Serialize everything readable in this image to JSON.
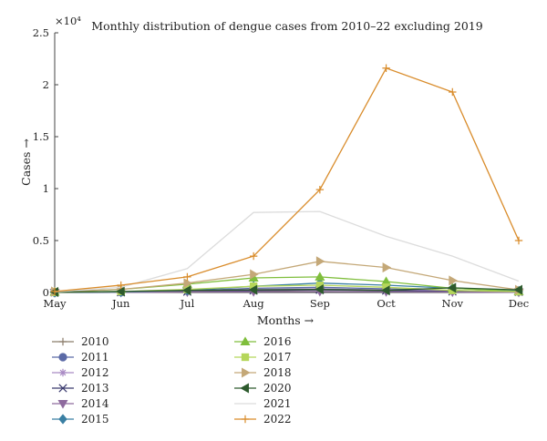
{
  "chart_data": {
    "type": "line",
    "title": "Monthly distribution of dengue cases from 2010–22 excluding 2019",
    "xlabel": "Months →",
    "ylabel": "Cases →",
    "y_exponent_label": "×10⁴",
    "categories": [
      "May",
      "Jun",
      "Jul",
      "Aug",
      "Sep",
      "Oct",
      "Nov",
      "Dec"
    ],
    "ylim": [
      0,
      25000
    ],
    "y_ticks": [
      0,
      5000,
      10000,
      15000,
      20000,
      25000
    ],
    "y_tick_labels": [
      "0",
      "0.5",
      "1",
      "1.5",
      "2",
      "2.5"
    ],
    "grid": false,
    "legend_placement": "bottom, two columns",
    "series": [
      {
        "name": "2010",
        "color": "#8b7d6b",
        "marker": "plus",
        "values": [
          0,
          20,
          60,
          120,
          250,
          200,
          100,
          40
        ]
      },
      {
        "name": "2011",
        "color": "#5b6aa6",
        "marker": "circle",
        "values": [
          0,
          30,
          150,
          400,
          500,
          350,
          180,
          80
        ]
      },
      {
        "name": "2012",
        "color": "#a98ac4",
        "marker": "asterisk",
        "values": [
          0,
          20,
          100,
          300,
          350,
          250,
          150,
          60
        ]
      },
      {
        "name": "2013",
        "color": "#3a3a6e",
        "marker": "x",
        "values": [
          0,
          20,
          80,
          200,
          250,
          180,
          100,
          50
        ]
      },
      {
        "name": "2014",
        "color": "#8e6a9e",
        "marker": "triangle-down",
        "values": [
          0,
          10,
          50,
          80,
          100,
          80,
          50,
          20
        ]
      },
      {
        "name": "2015",
        "color": "#3a7fa3",
        "marker": "diamond",
        "values": [
          0,
          50,
          200,
          600,
          900,
          700,
          400,
          150
        ]
      },
      {
        "name": "2016",
        "color": "#7fbe3c",
        "marker": "triangle-up",
        "values": [
          50,
          300,
          800,
          1400,
          1500,
          1050,
          400,
          100
        ]
      },
      {
        "name": "2017",
        "color": "#b5d65a",
        "marker": "square",
        "values": [
          20,
          100,
          300,
          600,
          700,
          500,
          200,
          80
        ]
      },
      {
        "name": "2018",
        "color": "#c4a878",
        "marker": "triangle-right",
        "values": [
          100,
          300,
          900,
          1750,
          3000,
          2400,
          1150,
          250
        ]
      },
      {
        "name": "2020",
        "color": "#2d5a2d",
        "marker": "triangle-left",
        "values": [
          50,
          100,
          200,
          250,
          300,
          200,
          450,
          250
        ]
      },
      {
        "name": "2021",
        "color": "#dcdcdc",
        "marker": "none",
        "values": [
          50,
          500,
          2300,
          7700,
          7800,
          5400,
          3500,
          1100
        ]
      },
      {
        "name": "2022",
        "color": "#d98c2b",
        "marker": "plus",
        "values": [
          100,
          700,
          1500,
          3500,
          9900,
          21600,
          19300,
          5000
        ]
      }
    ]
  }
}
